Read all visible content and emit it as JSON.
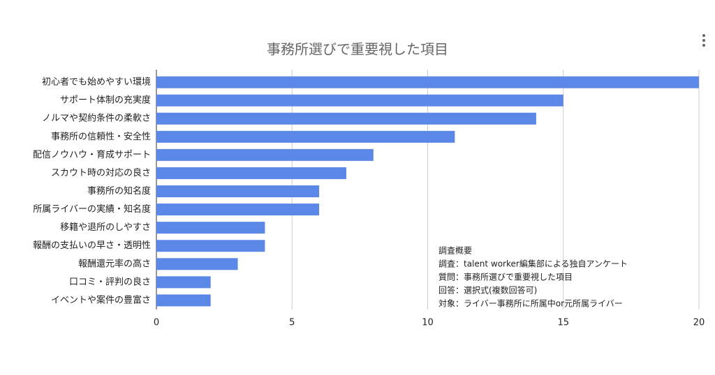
{
  "chart_data": {
    "type": "barh",
    "title": "事務所選びで重要視した項目",
    "categories": [
      "初心者でも始めやすい環境",
      "サポート体制の充実度",
      "ノルマや契約条件の柔軟さ",
      "事務所の信頼性・安全性",
      "配信ノウハウ・育成サポート",
      "スカウト時の対応の良さ",
      "事務所の知名度",
      "所属ライバーの実績・知名度",
      "移籍や退所のしやすさ",
      "報酬の支払いの早さ・透明性",
      "報酬還元率の高さ",
      "口コミ・評判の良さ",
      "イベントや案件の豊富さ"
    ],
    "values": [
      20,
      15,
      14,
      11,
      8,
      7,
      6,
      6,
      4,
      4,
      3,
      2,
      2
    ],
    "color": "#5b87e6",
    "xlim": [
      0,
      20
    ],
    "xticks": [
      0,
      5,
      10,
      15,
      20
    ],
    "grid": true,
    "annotations": [
      "調査概要",
      "調査：talent worker編集部による独自アンケート",
      "質問：事務所選びで重要視した項目",
      "回答：選択式(複数回答可)",
      "対象：ライバー事務所に所属中or元所属ライバー"
    ]
  }
}
